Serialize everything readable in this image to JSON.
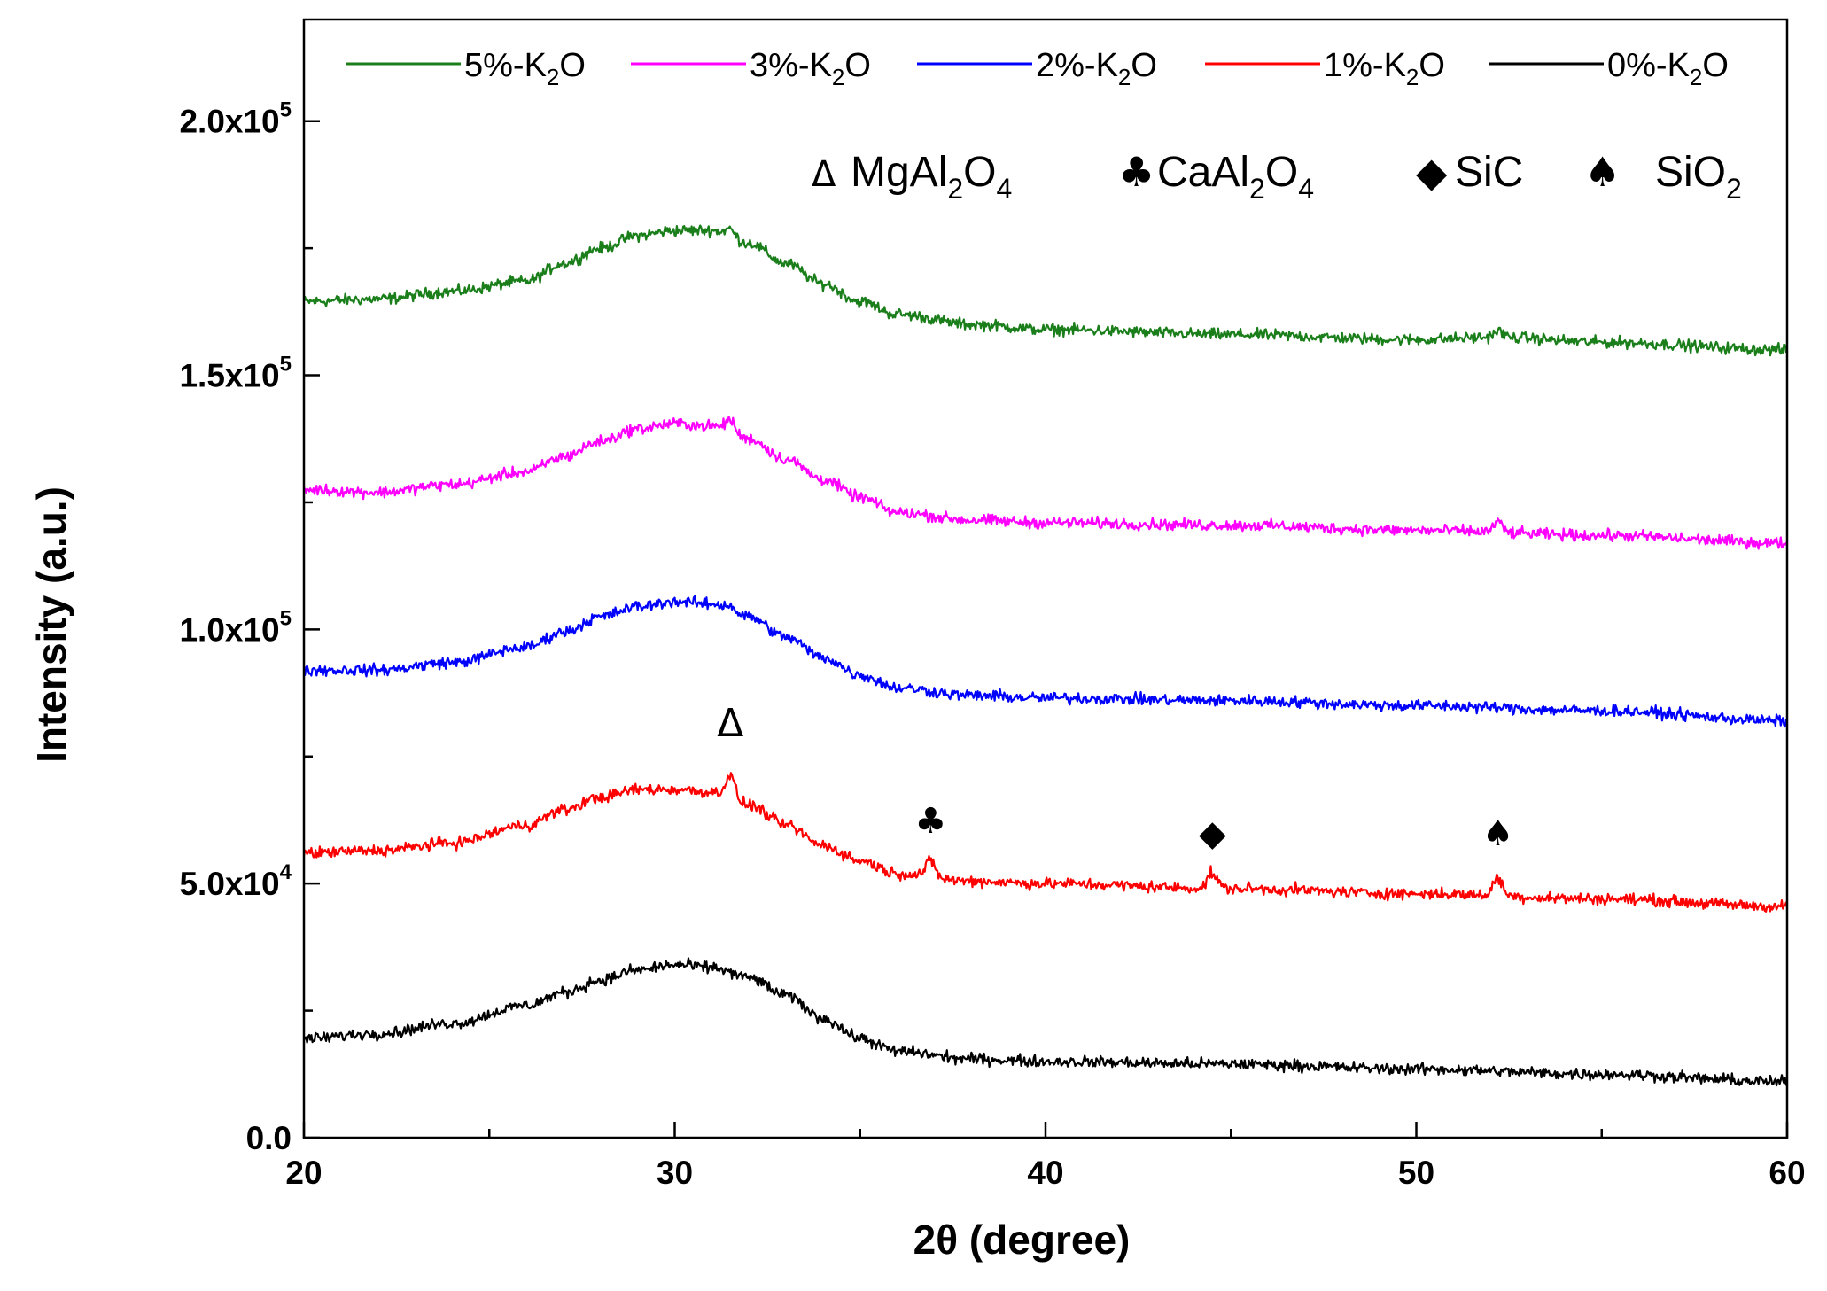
{
  "chart_data": {
    "type": "line",
    "xlabel": "2θ (degree)",
    "ylabel": "Intensity (a.u.)",
    "xlim": [
      20,
      60
    ],
    "ylim": [
      0,
      220000
    ],
    "x_ticks": [
      20,
      30,
      40,
      50,
      60
    ],
    "x_tick_labels": [
      "20",
      "30",
      "40",
      "50",
      "60"
    ],
    "y_ticks": [
      0,
      50000,
      100000,
      150000,
      200000
    ],
    "y_tick_labels": [
      {
        "mant": "0.0",
        "exp": ""
      },
      {
        "mant": "5.0x10",
        "exp": "4"
      },
      {
        "mant": "1.0x10",
        "exp": "5"
      },
      {
        "mant": "1.5x10",
        "exp": "5"
      },
      {
        "mant": "2.0x10",
        "exp": "5"
      }
    ],
    "series": [
      {
        "name": "5%-K2O",
        "label_main": "5%-K",
        "label_sub": "2",
        "label_tail": "O",
        "color": "#1a7f1a",
        "points": [
          [
            20,
            164500
          ],
          [
            22,
            165000
          ],
          [
            24,
            166500
          ],
          [
            26,
            168500
          ],
          [
            27,
            172000
          ],
          [
            28,
            175000
          ],
          [
            29,
            177500
          ],
          [
            30,
            178500
          ],
          [
            31,
            178500
          ],
          [
            32,
            176000
          ],
          [
            33,
            172000
          ],
          [
            34,
            168000
          ],
          [
            35,
            164500
          ],
          [
            36,
            162000
          ],
          [
            38,
            160000
          ],
          [
            40,
            159000
          ],
          [
            45,
            158000
          ],
          [
            50,
            157000
          ],
          [
            52.2,
            157500
          ],
          [
            55,
            156500
          ],
          [
            60,
            155000
          ]
        ],
        "peaks": [
          [
            31.5,
            1500
          ],
          [
            52.2,
            1200
          ]
        ]
      },
      {
        "name": "3%-K2O",
        "label_main": "3%-K",
        "label_sub": "2",
        "label_tail": "O",
        "color": "#ff00ff",
        "points": [
          [
            20,
            127500
          ],
          [
            22,
            127000
          ],
          [
            24,
            128500
          ],
          [
            26,
            131000
          ],
          [
            27,
            134000
          ],
          [
            28,
            137000
          ],
          [
            29,
            139500
          ],
          [
            30,
            140500
          ],
          [
            31,
            140000
          ],
          [
            32,
            137500
          ],
          [
            33,
            133500
          ],
          [
            34,
            129500
          ],
          [
            35,
            126000
          ],
          [
            36,
            123000
          ],
          [
            38,
            121500
          ],
          [
            40,
            121000
          ],
          [
            45,
            120500
          ],
          [
            50,
            119500
          ],
          [
            55,
            118500
          ],
          [
            60,
            117000
          ]
        ],
        "peaks": [
          [
            31.5,
            2500
          ],
          [
            52.2,
            2000
          ]
        ]
      },
      {
        "name": "2%-K2O",
        "label_main": "2%-K",
        "label_sub": "2",
        "label_tail": "O",
        "color": "#0000ff",
        "points": [
          [
            20,
            92000
          ],
          [
            22,
            92000
          ],
          [
            24,
            93500
          ],
          [
            26,
            96500
          ],
          [
            27,
            99500
          ],
          [
            28,
            102500
          ],
          [
            29,
            104500
          ],
          [
            30,
            105500
          ],
          [
            31,
            105000
          ],
          [
            32,
            102500
          ],
          [
            33,
            98500
          ],
          [
            34,
            94500
          ],
          [
            35,
            91000
          ],
          [
            36,
            88500
          ],
          [
            38,
            87000
          ],
          [
            40,
            86500
          ],
          [
            45,
            86000
          ],
          [
            50,
            85000
          ],
          [
            55,
            84000
          ],
          [
            60,
            82000
          ]
        ],
        "peaks": [
          [
            31.5,
            1000
          ]
        ]
      },
      {
        "name": "1%-K2O",
        "label_main": "1%-K",
        "label_sub": "2",
        "label_tail": "O",
        "color": "#ff0000",
        "points": [
          [
            20,
            56000
          ],
          [
            22,
            56500
          ],
          [
            24,
            58000
          ],
          [
            26,
            61500
          ],
          [
            27,
            64500
          ],
          [
            28,
            67000
          ],
          [
            29,
            68500
          ],
          [
            30,
            68500
          ],
          [
            31,
            68000
          ],
          [
            32,
            65500
          ],
          [
            33,
            61500
          ],
          [
            34,
            57500
          ],
          [
            35,
            54500
          ],
          [
            36,
            52000
          ],
          [
            38,
            50500
          ],
          [
            40,
            50000
          ],
          [
            45,
            49000
          ],
          [
            50,
            48000
          ],
          [
            55,
            47000
          ],
          [
            60,
            45500
          ]
        ],
        "peaks": [
          [
            31.5,
            4500
          ],
          [
            36.9,
            3000
          ],
          [
            44.5,
            3000
          ],
          [
            52.2,
            3500
          ]
        ]
      },
      {
        "name": "0%-K2O",
        "label_main": "0%-K",
        "label_sub": "2",
        "label_tail": "O",
        "color": "#000000",
        "points": [
          [
            20,
            19500
          ],
          [
            22,
            20500
          ],
          [
            24,
            22500
          ],
          [
            26,
            26000
          ],
          [
            27,
            28500
          ],
          [
            28,
            31000
          ],
          [
            29,
            33000
          ],
          [
            30,
            34000
          ],
          [
            31,
            33500
          ],
          [
            32,
            31500
          ],
          [
            33,
            28000
          ],
          [
            34,
            23500
          ],
          [
            35,
            19500
          ],
          [
            36,
            17000
          ],
          [
            38,
            15500
          ],
          [
            40,
            15000
          ],
          [
            45,
            14500
          ],
          [
            50,
            13500
          ],
          [
            55,
            12500
          ],
          [
            60,
            11000
          ]
        ],
        "peaks": []
      }
    ],
    "phase_legend": [
      {
        "symbol": "Δ",
        "main": "MgAl",
        "sub1": "2",
        "mid": "O",
        "sub2": "4"
      },
      {
        "symbol": "♣",
        "main": "CaAl",
        "sub1": "2",
        "mid": "O",
        "sub2": "4"
      },
      {
        "symbol": "◆",
        "main": "SiC",
        "sub1": "",
        "mid": "",
        "sub2": ""
      },
      {
        "symbol": "♠",
        "main": "SiO",
        "sub1": "2",
        "mid": "",
        "sub2": ""
      }
    ],
    "annotations": [
      {
        "symbol": "Δ",
        "x": 31.5,
        "y": 79000,
        "phase": "MgAl2O4"
      },
      {
        "symbol": "♣",
        "x": 36.9,
        "y": 60000,
        "phase": "CaAl2O4"
      },
      {
        "symbol": "◆",
        "x": 44.5,
        "y": 57500,
        "phase": "SiC"
      },
      {
        "symbol": "♠",
        "x": 52.2,
        "y": 57500,
        "phase": "SiO2"
      }
    ]
  }
}
